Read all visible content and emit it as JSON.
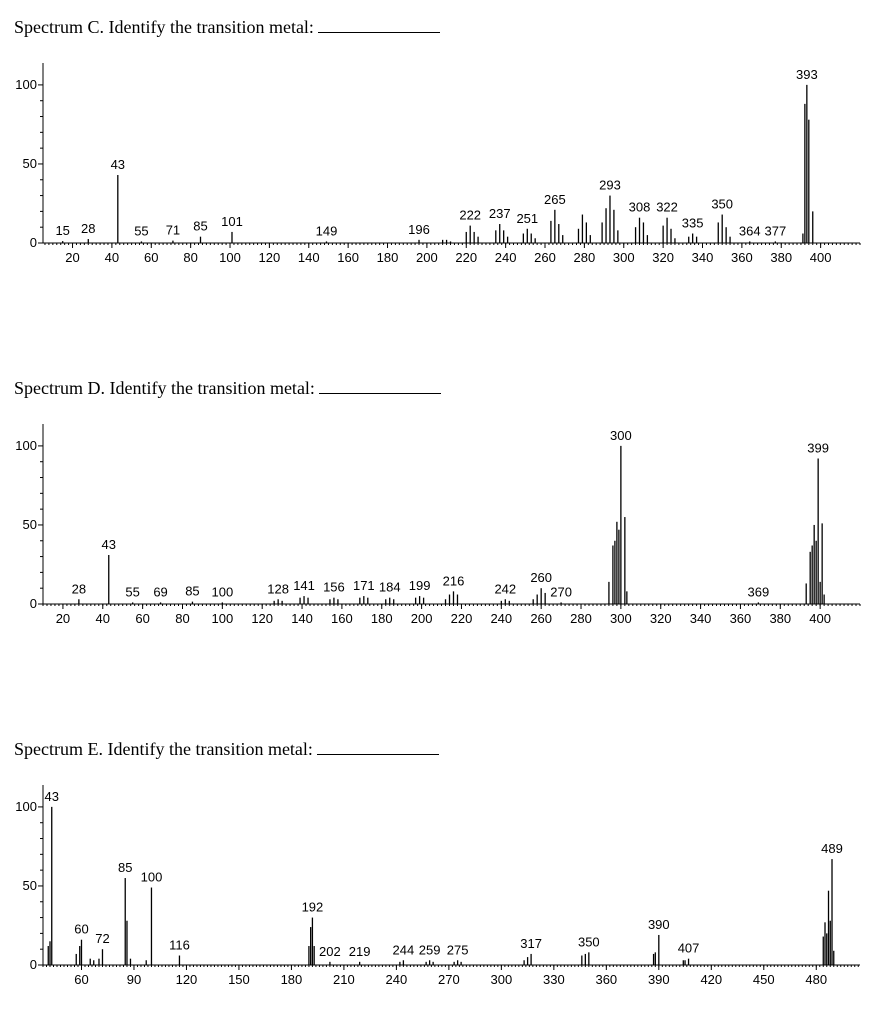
{
  "chart_data": [
    {
      "type": "bar",
      "title": "Spectrum C. Identify the transition metal:",
      "xlabel": "",
      "ylabel": "",
      "xlim": [
        5,
        420
      ],
      "ylim": [
        0,
        105
      ],
      "x_ticks": [
        20,
        40,
        60,
        80,
        100,
        120,
        140,
        160,
        180,
        200,
        220,
        240,
        260,
        280,
        300,
        320,
        340,
        360,
        380,
        400
      ],
      "y_ticks": [
        0,
        50,
        100
      ],
      "grid": false,
      "peaks": [
        {
          "x": 15,
          "y": 1.2,
          "label": "15"
        },
        {
          "x": 28,
          "y": 2.5,
          "label": "28"
        },
        {
          "x": 43,
          "y": 43,
          "label": "43"
        },
        {
          "x": 55,
          "y": 1,
          "label": "55"
        },
        {
          "x": 71,
          "y": 1.5,
          "label": "71"
        },
        {
          "x": 85,
          "y": 4,
          "label": "85"
        },
        {
          "x": 101,
          "y": 7,
          "label": "101"
        },
        {
          "x": 149,
          "y": 1,
          "label": "149"
        },
        {
          "x": 196,
          "y": 2,
          "label": "196"
        },
        {
          "x": 222,
          "y": 11,
          "label": "222"
        },
        {
          "x": 237,
          "y": 12,
          "label": "237"
        },
        {
          "x": 251,
          "y": 9,
          "label": "251"
        },
        {
          "x": 265,
          "y": 21,
          "label": "265"
        },
        {
          "x": 293,
          "y": 30,
          "label": "293"
        },
        {
          "x": 308,
          "y": 16,
          "label": "308"
        },
        {
          "x": 322,
          "y": 16,
          "label": "322"
        },
        {
          "x": 335,
          "y": 6,
          "label": "335"
        },
        {
          "x": 350,
          "y": 18,
          "label": "350"
        },
        {
          "x": 364,
          "y": 1,
          "label": "364"
        },
        {
          "x": 377,
          "y": 1,
          "label": "377"
        },
        {
          "x": 393,
          "y": 100,
          "label": "393"
        },
        {
          "x": 392,
          "y": 88
        },
        {
          "x": 394,
          "y": 78
        },
        {
          "x": 396,
          "y": 20
        },
        {
          "x": 391,
          "y": 6
        },
        {
          "x": 220,
          "y": 7
        },
        {
          "x": 224,
          "y": 7
        },
        {
          "x": 226,
          "y": 4
        },
        {
          "x": 235,
          "y": 8
        },
        {
          "x": 239,
          "y": 8
        },
        {
          "x": 241,
          "y": 4
        },
        {
          "x": 249,
          "y": 6
        },
        {
          "x": 253,
          "y": 6
        },
        {
          "x": 255,
          "y": 3
        },
        {
          "x": 263,
          "y": 14
        },
        {
          "x": 267,
          "y": 12
        },
        {
          "x": 269,
          "y": 5
        },
        {
          "x": 277,
          "y": 9
        },
        {
          "x": 279,
          "y": 18
        },
        {
          "x": 281,
          "y": 13
        },
        {
          "x": 283,
          "y": 5
        },
        {
          "x": 289,
          "y": 13
        },
        {
          "x": 291,
          "y": 22
        },
        {
          "x": 295,
          "y": 21
        },
        {
          "x": 297,
          "y": 8
        },
        {
          "x": 306,
          "y": 10
        },
        {
          "x": 310,
          "y": 13
        },
        {
          "x": 312,
          "y": 5
        },
        {
          "x": 320,
          "y": 11
        },
        {
          "x": 324,
          "y": 9
        },
        {
          "x": 326,
          "y": 3
        },
        {
          "x": 333,
          "y": 4
        },
        {
          "x": 337,
          "y": 4
        },
        {
          "x": 348,
          "y": 13
        },
        {
          "x": 352,
          "y": 10
        },
        {
          "x": 354,
          "y": 4
        },
        {
          "x": 208,
          "y": 2
        },
        {
          "x": 210,
          "y": 2
        },
        {
          "x": 212,
          "y": 1
        }
      ]
    },
    {
      "type": "bar",
      "title": "Spectrum D. Identify the transition metal:",
      "xlabel": "",
      "ylabel": "",
      "xlim": [
        10,
        420
      ],
      "ylim": [
        0,
        105
      ],
      "x_ticks": [
        20,
        40,
        60,
        80,
        100,
        120,
        140,
        160,
        180,
        200,
        220,
        240,
        260,
        280,
        300,
        320,
        340,
        360,
        380,
        400
      ],
      "y_ticks": [
        0,
        50,
        100
      ],
      "grid": false,
      "peaks": [
        {
          "x": 28,
          "y": 3,
          "label": "28"
        },
        {
          "x": 43,
          "y": 31,
          "label": "43"
        },
        {
          "x": 55,
          "y": 1,
          "label": "55"
        },
        {
          "x": 69,
          "y": 1,
          "label": "69"
        },
        {
          "x": 85,
          "y": 1.5,
          "label": "85"
        },
        {
          "x": 100,
          "y": 1,
          "label": "100"
        },
        {
          "x": 128,
          "y": 3,
          "label": "128"
        },
        {
          "x": 141,
          "y": 5,
          "label": "141"
        },
        {
          "x": 156,
          "y": 4,
          "label": "156"
        },
        {
          "x": 171,
          "y": 5,
          "label": "171"
        },
        {
          "x": 184,
          "y": 4,
          "label": "184"
        },
        {
          "x": 199,
          "y": 5,
          "label": "199"
        },
        {
          "x": 216,
          "y": 8,
          "label": "216"
        },
        {
          "x": 242,
          "y": 3,
          "label": "242"
        },
        {
          "x": 260,
          "y": 10,
          "label": "260"
        },
        {
          "x": 270,
          "y": 1,
          "label": "270"
        },
        {
          "x": 300,
          "y": 100,
          "label": "300"
        },
        {
          "x": 369,
          "y": 1,
          "label": "369"
        },
        {
          "x": 399,
          "y": 92,
          "label": "399"
        },
        {
          "x": 294,
          "y": 14
        },
        {
          "x": 296,
          "y": 37
        },
        {
          "x": 297,
          "y": 40
        },
        {
          "x": 298,
          "y": 52
        },
        {
          "x": 299,
          "y": 47
        },
        {
          "x": 302,
          "y": 55
        },
        {
          "x": 303,
          "y": 8
        },
        {
          "x": 393,
          "y": 13
        },
        {
          "x": 395,
          "y": 33
        },
        {
          "x": 396,
          "y": 37
        },
        {
          "x": 397,
          "y": 50
        },
        {
          "x": 398,
          "y": 40
        },
        {
          "x": 400,
          "y": 14
        },
        {
          "x": 401,
          "y": 51
        },
        {
          "x": 402,
          "y": 6
        },
        {
          "x": 258,
          "y": 6
        },
        {
          "x": 262,
          "y": 7
        },
        {
          "x": 256,
          "y": 3
        },
        {
          "x": 214,
          "y": 6
        },
        {
          "x": 218,
          "y": 6
        },
        {
          "x": 212,
          "y": 3
        },
        {
          "x": 139,
          "y": 4
        },
        {
          "x": 143,
          "y": 4
        },
        {
          "x": 154,
          "y": 3
        },
        {
          "x": 158,
          "y": 3
        },
        {
          "x": 169,
          "y": 4
        },
        {
          "x": 173,
          "y": 4
        },
        {
          "x": 182,
          "y": 3
        },
        {
          "x": 186,
          "y": 3
        },
        {
          "x": 197,
          "y": 4
        },
        {
          "x": 201,
          "y": 4
        },
        {
          "x": 126,
          "y": 2
        },
        {
          "x": 130,
          "y": 2
        },
        {
          "x": 240,
          "y": 2
        },
        {
          "x": 244,
          "y": 2
        }
      ]
    },
    {
      "type": "bar",
      "title": "Spectrum E. Identify the transition metal:",
      "xlabel": "",
      "ylabel": "",
      "xlim": [
        38,
        505
      ],
      "ylim": [
        0,
        105
      ],
      "x_ticks": [
        60,
        90,
        120,
        150,
        180,
        210,
        240,
        270,
        300,
        330,
        360,
        390,
        420,
        450,
        480
      ],
      "y_ticks": [
        0,
        50,
        100
      ],
      "grid": false,
      "peaks": [
        {
          "x": 43,
          "y": 100,
          "label": "43"
        },
        {
          "x": 60,
          "y": 16,
          "label": "60"
        },
        {
          "x": 72,
          "y": 10,
          "label": "72"
        },
        {
          "x": 85,
          "y": 55,
          "label": "85"
        },
        {
          "x": 100,
          "y": 49,
          "label": "100"
        },
        {
          "x": 116,
          "y": 6,
          "label": "116"
        },
        {
          "x": 192,
          "y": 30,
          "label": "192"
        },
        {
          "x": 202,
          "y": 2,
          "label": "202"
        },
        {
          "x": 219,
          "y": 2,
          "label": "219"
        },
        {
          "x": 244,
          "y": 3,
          "label": "244"
        },
        {
          "x": 259,
          "y": 3,
          "label": "259"
        },
        {
          "x": 275,
          "y": 3,
          "label": "275"
        },
        {
          "x": 317,
          "y": 7,
          "label": "317"
        },
        {
          "x": 350,
          "y": 8,
          "label": "350"
        },
        {
          "x": 390,
          "y": 19,
          "label": "390"
        },
        {
          "x": 407,
          "y": 4,
          "label": "407"
        },
        {
          "x": 489,
          "y": 67,
          "label": "489"
        },
        {
          "x": 41,
          "y": 12
        },
        {
          "x": 42,
          "y": 15
        },
        {
          "x": 57,
          "y": 7
        },
        {
          "x": 59,
          "y": 12
        },
        {
          "x": 65,
          "y": 4
        },
        {
          "x": 67,
          "y": 3
        },
        {
          "x": 70,
          "y": 4
        },
        {
          "x": 86,
          "y": 28
        },
        {
          "x": 88,
          "y": 4
        },
        {
          "x": 97,
          "y": 3
        },
        {
          "x": 190,
          "y": 12
        },
        {
          "x": 191,
          "y": 24
        },
        {
          "x": 193,
          "y": 12
        },
        {
          "x": 484,
          "y": 18
        },
        {
          "x": 485,
          "y": 27
        },
        {
          "x": 486,
          "y": 20
        },
        {
          "x": 487,
          "y": 47
        },
        {
          "x": 488,
          "y": 28
        },
        {
          "x": 490,
          "y": 9
        },
        {
          "x": 387,
          "y": 7
        },
        {
          "x": 388,
          "y": 8
        },
        {
          "x": 404,
          "y": 3
        },
        {
          "x": 405,
          "y": 3
        },
        {
          "x": 346,
          "y": 6
        },
        {
          "x": 348,
          "y": 7
        },
        {
          "x": 315,
          "y": 5
        },
        {
          "x": 313,
          "y": 3
        },
        {
          "x": 242,
          "y": 2
        },
        {
          "x": 257,
          "y": 2
        },
        {
          "x": 261,
          "y": 2
        },
        {
          "x": 273,
          "y": 2
        },
        {
          "x": 277,
          "y": 2
        }
      ]
    }
  ]
}
